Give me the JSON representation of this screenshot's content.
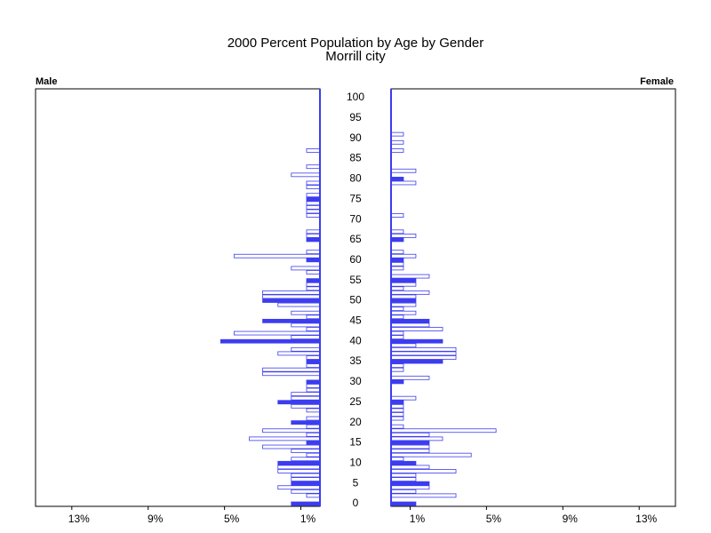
{
  "chart_data": {
    "type": "pyramid",
    "title": "2000 Percent Population by Age by Gender",
    "subtitle": "Morrill city",
    "ages": [
      0,
      1,
      2,
      3,
      4,
      5,
      6,
      7,
      8,
      9,
      10,
      11,
      12,
      13,
      14,
      15,
      16,
      17,
      18,
      19,
      20,
      21,
      22,
      23,
      24,
      25,
      26,
      27,
      28,
      29,
      30,
      31,
      32,
      33,
      34,
      35,
      36,
      37,
      38,
      39,
      40,
      41,
      42,
      43,
      44,
      45,
      46,
      47,
      48,
      49,
      50,
      51,
      52,
      53,
      54,
      55,
      56,
      57,
      58,
      59,
      60,
      61,
      62,
      63,
      64,
      65,
      66,
      67,
      68,
      69,
      70,
      71,
      72,
      73,
      74,
      75,
      76,
      77,
      78,
      79,
      80,
      81,
      82,
      83,
      84,
      85,
      86,
      87,
      88,
      89,
      90,
      91,
      92,
      93,
      94,
      95,
      96,
      97,
      98,
      99,
      100
    ],
    "ylim": [
      0,
      100
    ],
    "yticks": [
      0,
      5,
      10,
      15,
      20,
      25,
      30,
      35,
      40,
      45,
      50,
      55,
      60,
      65,
      70,
      75,
      80,
      85,
      90,
      95,
      100
    ],
    "xlim": [
      0,
      14.9
    ],
    "xticks": [
      {
        "value": 13,
        "label": "13%"
      },
      {
        "value": 9,
        "label": "9%"
      },
      {
        "value": 5,
        "label": "5%"
      },
      {
        "value": 1,
        "label": "1%"
      }
    ],
    "series": [
      {
        "name": "Male",
        "color": "#3c3cf0",
        "values": [
          1.5,
          0,
          0.7,
          1.5,
          2.2,
          1.5,
          1.5,
          1.5,
          2.2,
          2.2,
          2.2,
          1.5,
          0.7,
          1.5,
          3.0,
          0.7,
          3.7,
          0.7,
          3.0,
          0.7,
          1.5,
          0.7,
          0,
          0.7,
          1.5,
          2.2,
          1.5,
          1.5,
          0.7,
          0.7,
          0.7,
          0,
          3.0,
          3.0,
          0.7,
          0.7,
          0.7,
          2.2,
          1.5,
          0,
          5.2,
          1.5,
          4.5,
          0.7,
          1.5,
          3.0,
          0.7,
          1.5,
          0,
          2.2,
          3.0,
          3.0,
          3.0,
          0.7,
          0.7,
          0.7,
          0,
          0.7,
          1.5,
          0,
          0.7,
          4.5,
          0.7,
          0,
          0,
          0.7,
          0.7,
          0.7,
          0,
          0,
          0,
          0.7,
          0.7,
          0.7,
          0.7,
          0.7,
          0.7,
          0,
          0.7,
          0.7,
          0,
          1.5,
          0,
          0.7,
          0,
          0,
          0,
          0.7,
          0,
          0,
          0,
          0,
          0,
          0,
          0,
          0,
          0,
          0,
          0,
          0,
          0
        ]
      },
      {
        "name": "Female",
        "color": "#3c3cf0",
        "values": [
          1.3,
          0,
          3.4,
          1.3,
          2.0,
          2.0,
          1.3,
          1.3,
          3.4,
          2.0,
          1.3,
          0.65,
          4.2,
          2.0,
          2.0,
          2.0,
          2.7,
          2.0,
          5.5,
          0.65,
          0,
          0.65,
          0.65,
          0.65,
          0.65,
          0.65,
          1.3,
          0,
          0,
          0,
          0.65,
          2.0,
          0,
          0.65,
          0.65,
          2.7,
          3.4,
          3.4,
          3.4,
          1.3,
          2.7,
          0.65,
          0.65,
          2.7,
          2.0,
          2.0,
          0.65,
          1.3,
          0.65,
          1.3,
          1.3,
          1.3,
          2.0,
          0.65,
          1.3,
          1.3,
          2.0,
          0,
          0.65,
          0.65,
          0.65,
          1.3,
          0.65,
          0,
          0,
          0.65,
          1.3,
          0.65,
          0,
          0,
          0,
          0.65,
          0,
          0,
          0,
          0,
          0,
          0,
          0,
          1.3,
          0.65,
          0,
          1.3,
          0,
          0,
          0,
          0,
          0.65,
          0,
          0.65,
          0,
          0.65,
          0,
          0,
          0,
          0,
          0,
          0,
          0,
          0,
          0
        ]
      }
    ]
  }
}
